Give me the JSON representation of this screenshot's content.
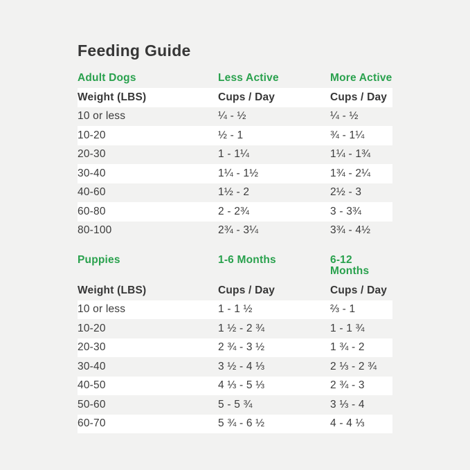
{
  "title": "Feeding Guide",
  "colors": {
    "page_background": "#f2f2f1",
    "row_highlight": "#ffffff",
    "accent_green": "#29a14d",
    "text_dark": "#3b3b3b"
  },
  "chart_data": [
    {
      "type": "table",
      "section_label": "Adult Dogs",
      "col2_label": "Less Active",
      "col3_label": "More Active",
      "header": {
        "col1": "Weight (LBS)",
        "col2": "Cups / Day",
        "col3": "Cups / Day"
      },
      "rows": [
        {
          "weight": "10 or less",
          "col2": "¼ - ½",
          "col3": "¼ - ½"
        },
        {
          "weight": "10-20",
          "col2": "½ - 1",
          "col3": "¾ - 1¼"
        },
        {
          "weight": "20-30",
          "col2": "1 - 1¼",
          "col3": "1¼ - 1¾"
        },
        {
          "weight": "30-40",
          "col2": "1¼ - 1½",
          "col3": "1¾ - 2¼"
        },
        {
          "weight": "40-60",
          "col2": "1½ - 2",
          "col3": "2½ - 3"
        },
        {
          "weight": "60-80",
          "col2": "2 - 2¾",
          "col3": "3 - 3¾"
        },
        {
          "weight": "80-100",
          "col2": "2¾ - 3¼",
          "col3": "3¾ - 4½"
        }
      ]
    },
    {
      "type": "table",
      "section_label": "Puppies",
      "col2_label": "1-6 Months",
      "col3_label": "6-12 Months",
      "header": {
        "col1": "Weight (LBS)",
        "col2": "Cups / Day",
        "col3": "Cups / Day"
      },
      "rows": [
        {
          "weight": "10 or less",
          "col2": "1 - 1 ½",
          "col3": "⅔ - 1"
        },
        {
          "weight": "10-20",
          "col2": "1 ½ - 2 ¾",
          "col3": "1 - 1 ¾"
        },
        {
          "weight": "20-30",
          "col2": "2 ¾ - 3 ½",
          "col3": "1 ¾ - 2"
        },
        {
          "weight": "30-40",
          "col2": "3 ½ - 4 ⅓",
          "col3": "2 ⅓ - 2 ¾"
        },
        {
          "weight": "40-50",
          "col2": "4 ⅓ - 5 ⅓",
          "col3": "2 ¾ - 3"
        },
        {
          "weight": "50-60",
          "col2": "5 - 5 ¾",
          "col3": "3 ⅓ - 4"
        },
        {
          "weight": "60-70",
          "col2": "5 ¾ - 6 ½",
          "col3": "4 - 4 ⅓"
        }
      ]
    }
  ]
}
